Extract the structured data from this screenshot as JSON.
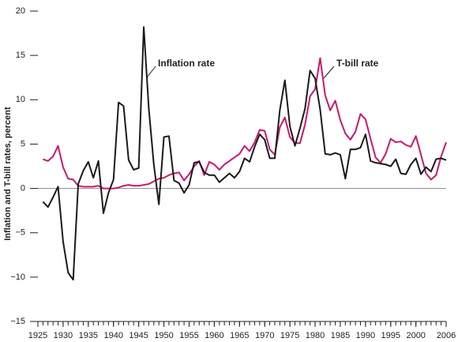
{
  "chart_data": {
    "type": "line",
    "y_label": "Inflation and T-bill rates, percent",
    "annotations": [
      {
        "text": "Inflation rate"
      },
      {
        "text": "T-bill rate"
      }
    ],
    "x": [
      1926,
      1927,
      1928,
      1929,
      1930,
      1931,
      1932,
      1933,
      1934,
      1935,
      1936,
      1937,
      1938,
      1939,
      1940,
      1941,
      1942,
      1943,
      1944,
      1945,
      1946,
      1947,
      1948,
      1949,
      1950,
      1951,
      1952,
      1953,
      1954,
      1955,
      1956,
      1957,
      1958,
      1959,
      1960,
      1961,
      1962,
      1963,
      1964,
      1965,
      1966,
      1967,
      1968,
      1969,
      1970,
      1971,
      1972,
      1973,
      1974,
      1975,
      1976,
      1977,
      1978,
      1979,
      1980,
      1981,
      1982,
      1983,
      1984,
      1985,
      1986,
      1987,
      1988,
      1989,
      1990,
      1991,
      1992,
      1993,
      1994,
      1995,
      1996,
      1997,
      1998,
      1999,
      2000,
      2001,
      2002,
      2003,
      2004,
      2005,
      2006
    ],
    "series": [
      {
        "name": "Inflation rate",
        "color": "#1a1a1a",
        "values": [
          -1.5,
          -2.1,
          -1.0,
          0.2,
          -6.0,
          -9.5,
          -10.3,
          0.5,
          2.0,
          3.0,
          1.2,
          3.1,
          -2.8,
          -0.5,
          1.0,
          9.7,
          9.3,
          3.2,
          2.1,
          2.3,
          18.2,
          9.0,
          2.7,
          -1.8,
          5.8,
          5.9,
          0.9,
          0.6,
          -0.5,
          0.4,
          2.9,
          3.0,
          1.8,
          1.5,
          1.5,
          0.7,
          1.2,
          1.7,
          1.2,
          1.9,
          3.4,
          3.0,
          4.7,
          6.1,
          5.5,
          3.4,
          3.4,
          8.8,
          12.2,
          7.0,
          4.8,
          6.8,
          9.0,
          13.3,
          12.4,
          8.9,
          3.9,
          3.8,
          4.0,
          3.8,
          1.1,
          4.4,
          4.4,
          4.6,
          6.1,
          3.1,
          2.9,
          2.8,
          2.7,
          2.5,
          3.3,
          1.7,
          1.6,
          2.7,
          3.4,
          1.6,
          2.4,
          1.9,
          3.3,
          3.4,
          3.2
        ]
      },
      {
        "name": "T-bill rate",
        "color": "#c8186e",
        "values": [
          3.3,
          3.1,
          3.6,
          4.8,
          2.4,
          1.1,
          1.0,
          0.3,
          0.2,
          0.2,
          0.2,
          0.3,
          0.0,
          0.0,
          0.0,
          0.1,
          0.3,
          0.4,
          0.3,
          0.3,
          0.4,
          0.5,
          0.8,
          1.1,
          1.2,
          1.5,
          1.7,
          1.8,
          0.9,
          1.6,
          2.5,
          3.1,
          1.5,
          3.0,
          2.7,
          2.1,
          2.7,
          3.1,
          3.5,
          3.9,
          4.8,
          4.2,
          5.2,
          6.6,
          6.5,
          4.4,
          3.8,
          6.9,
          8.0,
          5.8,
          5.1,
          5.1,
          7.2,
          10.4,
          11.2,
          14.7,
          10.5,
          8.8,
          9.9,
          7.7,
          6.2,
          5.5,
          6.4,
          8.4,
          7.8,
          5.6,
          3.5,
          2.9,
          3.9,
          5.6,
          5.2,
          5.3,
          4.9,
          4.7,
          5.9,
          3.8,
          1.7,
          1.0,
          1.5,
          3.6,
          5.2
        ]
      }
    ],
    "xlim": [
      1925,
      2006
    ],
    "xticks": [
      1925,
      1930,
      1935,
      1940,
      1945,
      1950,
      1955,
      1960,
      1965,
      1970,
      1975,
      1980,
      1985,
      1990,
      1995,
      2000,
      2006
    ],
    "ylim": [
      -15,
      20
    ],
    "yticks": [
      {
        "value": -15,
        "label": "−15"
      },
      {
        "value": -10,
        "label": "−10"
      },
      {
        "value": -5,
        "label": "−5"
      },
      0,
      5,
      10,
      15,
      20
    ],
    "zero_line": true
  }
}
